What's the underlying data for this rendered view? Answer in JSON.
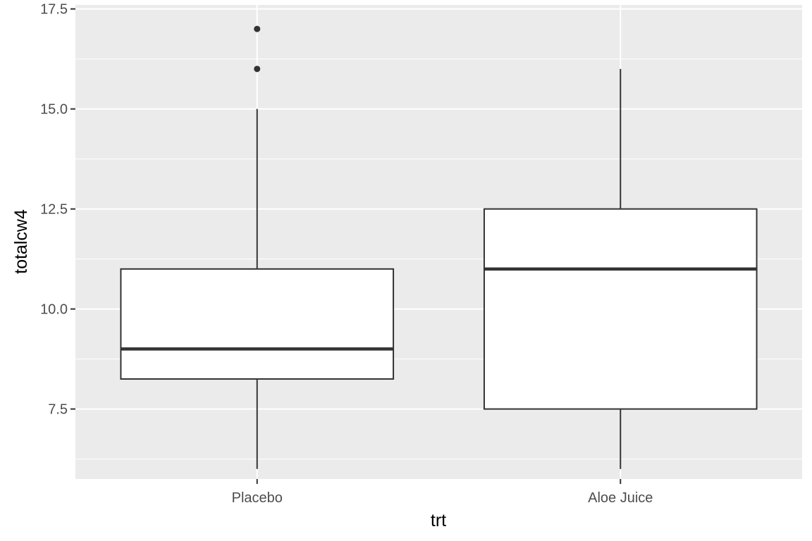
{
  "chart_data": {
    "type": "box",
    "xlabel": "trt",
    "ylabel": "totalcw4",
    "categories": [
      "Placebo",
      "Aloe Juice"
    ],
    "ylim": [
      5.75,
      17.6
    ],
    "yticks": [
      7.5,
      10.0,
      12.5,
      15.0,
      17.5
    ],
    "ytick_labels": [
      "7.5",
      "10.0",
      "12.5",
      "15.0",
      "17.5"
    ],
    "grid": true,
    "legend": "none",
    "boxes": [
      {
        "category": "Placebo",
        "whisker_low": 6,
        "q1": 8.25,
        "median": 9,
        "q3": 11,
        "whisker_high": 15,
        "outliers": [
          16,
          17
        ]
      },
      {
        "category": "Aloe Juice",
        "whisker_low": 6,
        "q1": 7.5,
        "median": 11,
        "q3": 12.5,
        "whisker_high": 16,
        "outliers": []
      }
    ],
    "colors": {
      "panel_bg": "#ebebeb",
      "grid": "#ffffff",
      "box_fill": "#ffffff",
      "box_stroke": "#333333",
      "tick_text": "#4d4d4d",
      "tick_mark": "#333333"
    }
  }
}
